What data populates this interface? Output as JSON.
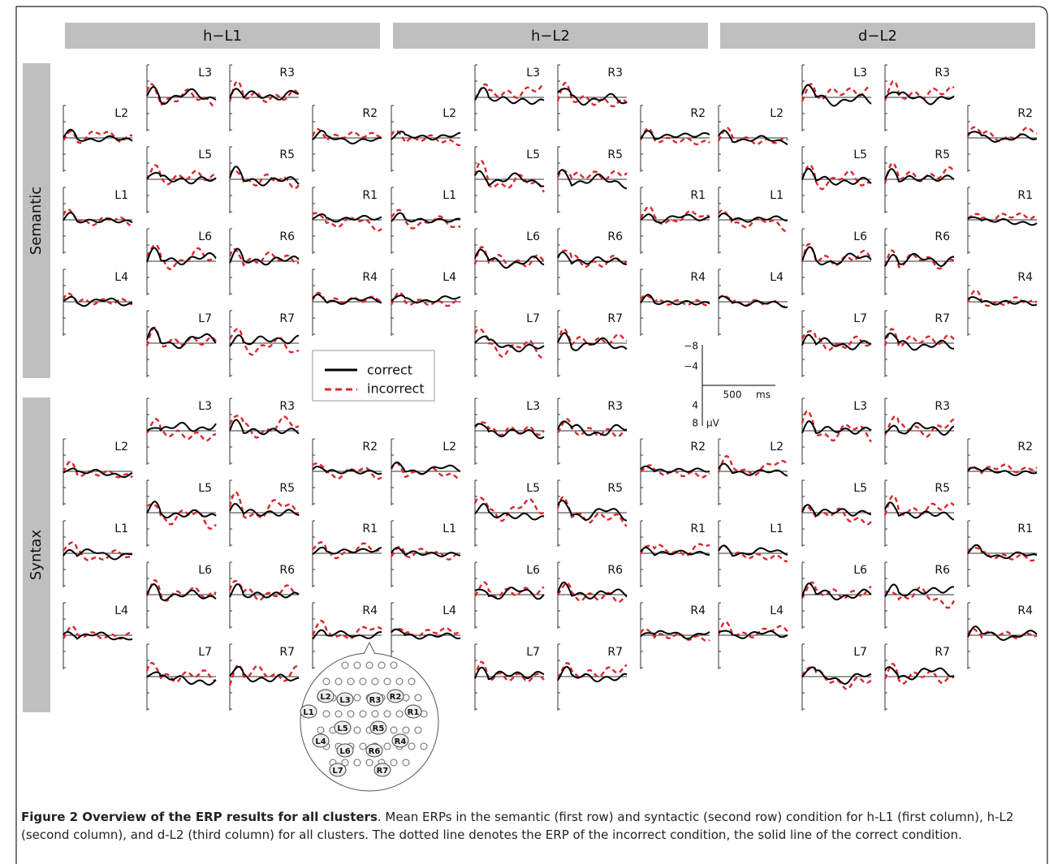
{
  "columns": [
    "h−L1",
    "h−L2",
    "d−L2"
  ],
  "rows": [
    "Semantic",
    "Syntax"
  ],
  "clusters": {
    "left_outer": [
      "L2",
      "L1",
      "L4"
    ],
    "left_inner": [
      "L3",
      "L5",
      "L6",
      "L7"
    ],
    "right_inner": [
      "R3",
      "R5",
      "R6",
      "R7"
    ],
    "right_outer": [
      "R2",
      "R1",
      "R4"
    ]
  },
  "legend": {
    "correct": "correct",
    "incorrect": "incorrect"
  },
  "scale_bar": {
    "y_ticks": [
      "−8",
      "−4",
      "4",
      "8"
    ],
    "y_unit": "μV",
    "x_tick": "500",
    "x_unit": "ms"
  },
  "caption": {
    "title": "Figure 2 Overview of the ERP results for all clusters",
    "text": ". Mean ERPs in the semantic (first row) and syntactic (second row) condition for h-L1 (first column), h-L2 (second column), and d-L2 (third column) for all clusters. The dotted line denotes the ERP of the incorrect condition, the solid line of the correct condition."
  }
}
